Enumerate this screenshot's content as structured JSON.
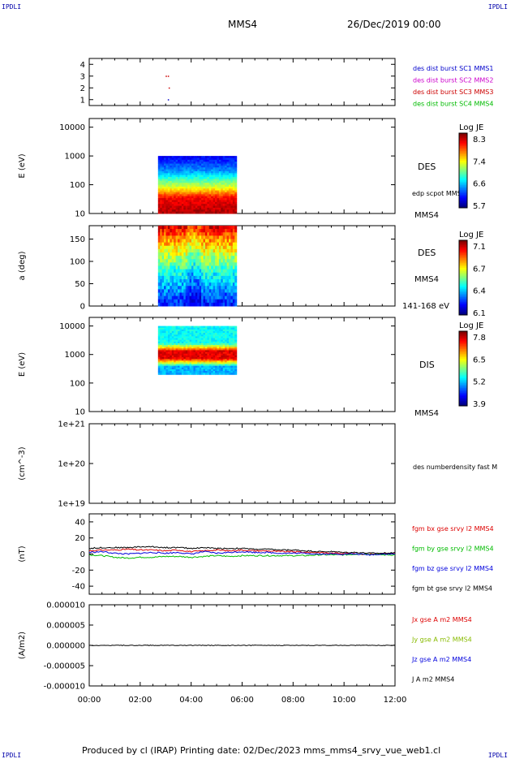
{
  "header": {
    "logo_left": "IPDLI",
    "logo_right": "IPDLI",
    "spacecraft": "MMS4",
    "datetime": "26/Dec/2019 00:00"
  },
  "footer": {
    "text": "Produced by cl (IRAP)   Printing date: 02/Dec/2023   mms_mms4_srvy_vue_web1.cl",
    "logo_left": "IPDLI",
    "logo_right": "IPDLI"
  },
  "chart_data": [
    {
      "type": "scatter",
      "panel": "burst-indicator",
      "yticks": [
        "4",
        "3",
        "2",
        "1"
      ],
      "ylim": [
        0.5,
        4.5
      ],
      "legend": [
        {
          "label": "des dist burst SC1 MMS1",
          "color": "#0000cc"
        },
        {
          "label": "des dist burst SC2 MMS2",
          "color": "#cc00cc"
        },
        {
          "label": "des dist burst SC3 MMS3",
          "color": "#cc0000"
        },
        {
          "label": "des dist burst SC4 MMS4",
          "color": "#00bb00"
        }
      ],
      "points": [
        {
          "x": "03:00",
          "y": 3,
          "color": "#cc0000"
        },
        {
          "x": "03:05",
          "y": 3,
          "color": "#cc0000"
        },
        {
          "x": "03:07",
          "y": 2,
          "color": "#cc0000"
        },
        {
          "x": "03:05",
          "y": 1,
          "color": "#0000cc"
        }
      ]
    },
    {
      "type": "heatmap",
      "panel": "des-energy",
      "ylabel": "E (eV)",
      "yscale": "log",
      "yticks": [
        "10000",
        "1000",
        "100",
        "10"
      ],
      "label": "DES",
      "sublabel": "edp scpot MMS4",
      "bottom_label": "MMS4",
      "data_span": [
        "02:42",
        "05:47"
      ],
      "colorbar": {
        "title": "Log JE",
        "ticks": [
          "8.3",
          "7.4",
          "6.6",
          "5.7"
        ],
        "range": [
          5.7,
          8.3
        ]
      }
    },
    {
      "type": "heatmap",
      "panel": "des-pitch-angle",
      "ylabel": "a (deg)",
      "yticks": [
        "150",
        "100",
        "50",
        "0"
      ],
      "ylim": [
        0,
        180
      ],
      "label": "DES",
      "sublabel": "MMS4",
      "bottom_label": "141-168 eV",
      "data_span": [
        "02:42",
        "05:47"
      ],
      "colorbar": {
        "title": "Log JE",
        "ticks": [
          "7.1",
          "6.7",
          "6.4",
          "6.1"
        ],
        "range": [
          6.1,
          7.1
        ]
      }
    },
    {
      "type": "heatmap",
      "panel": "dis-energy",
      "ylabel": "E (eV)",
      "yscale": "log",
      "yticks": [
        "10000",
        "1000",
        "100",
        "10"
      ],
      "label": "DIS",
      "bottom_label": "MMS4",
      "data_span": [
        "02:42",
        "05:47"
      ],
      "colorbar": {
        "title": "Log JE",
        "ticks": [
          "7.8",
          "6.5",
          "5.2",
          "3.9"
        ],
        "range": [
          3.9,
          7.8
        ]
      }
    },
    {
      "type": "line",
      "panel": "density",
      "ylabel": "(cm^-3)",
      "yscale": "log",
      "yticks": [
        "1e+21",
        "1e+20",
        "1e+19"
      ],
      "legend": [
        {
          "label": "des numberdensity fast M",
          "color": "#000000"
        }
      ],
      "series": []
    },
    {
      "type": "line",
      "panel": "magnetic-field",
      "ylabel": "(nT)",
      "yticks": [
        "40",
        "20",
        "0",
        "-20",
        "-40"
      ],
      "ylim": [
        -50,
        50
      ],
      "legend": [
        {
          "label": "fgm bx gse srvy l2 MMS4",
          "color": "#dd0000"
        },
        {
          "label": "fgm by gse srvy l2 MMS4",
          "color": "#00bb00"
        },
        {
          "label": "fgm bz gse srvy l2 MMS4",
          "color": "#0000dd"
        },
        {
          "label": "fgm bt gse srvy l2 MMS4",
          "color": "#000000"
        }
      ],
      "x": [
        "00:00",
        "00:30",
        "01:00",
        "01:30",
        "02:00",
        "02:30",
        "03:00",
        "03:30",
        "04:00",
        "04:30",
        "05:00",
        "05:30",
        "06:00",
        "06:30",
        "07:00",
        "07:30",
        "08:00",
        "08:30",
        "09:00",
        "09:30",
        "10:00",
        "10:30",
        "11:00",
        "11:30",
        "12:00"
      ],
      "series": [
        {
          "values": [
            4,
            5,
            5,
            6,
            5,
            5,
            4,
            5,
            3,
            4,
            5,
            4,
            5,
            4,
            4,
            3,
            3,
            2,
            2,
            1,
            1,
            0,
            0,
            0,
            1
          ],
          "color": "#dd0000"
        },
        {
          "values": [
            -1,
            -2,
            -4,
            -5,
            -4,
            -4,
            -3,
            -3,
            -4,
            -3,
            -2,
            -3,
            -2,
            -2,
            -2,
            -2,
            -2,
            -2,
            -1,
            -1,
            -1,
            0,
            0,
            -1,
            -1
          ],
          "color": "#00bb00"
        },
        {
          "values": [
            2,
            3,
            1,
            0,
            1,
            2,
            1,
            2,
            0,
            3,
            1,
            2,
            3,
            2,
            2,
            1,
            1,
            1,
            0,
            0,
            0,
            0,
            -1,
            0,
            0
          ],
          "color": "#0000dd"
        },
        {
          "values": [
            7,
            8,
            8,
            8,
            9,
            9,
            8,
            8,
            7,
            8,
            7,
            7,
            7,
            6,
            6,
            5,
            5,
            4,
            3,
            3,
            2,
            2,
            1,
            1,
            2
          ],
          "color": "#000000"
        }
      ]
    },
    {
      "type": "line",
      "panel": "current-density",
      "ylabel": "(A/m2)",
      "yticks": [
        "0.000010",
        "0.000005",
        "0.000000",
        "-0.000005",
        "-0.000010"
      ],
      "ylim": [
        -1e-05,
        1e-05
      ],
      "xticks": [
        "00:00",
        "02:00",
        "04:00",
        "06:00",
        "08:00",
        "10:00",
        "12:00"
      ],
      "legend": [
        {
          "label": "Jx gse A m2 MMS4",
          "color": "#dd0000"
        },
        {
          "label": "Jy gse A m2 MMS4",
          "color": "#88bb00"
        },
        {
          "label": "Jz gse A m2 MMS4",
          "color": "#0000dd"
        },
        {
          "label": "J A m2 MMS4",
          "color": "#000000"
        }
      ],
      "series": [
        {
          "name": "J A m2 MMS4",
          "values": [
            0,
            0,
            0,
            0,
            0,
            0,
            0
          ],
          "color": "#000000"
        }
      ]
    }
  ]
}
